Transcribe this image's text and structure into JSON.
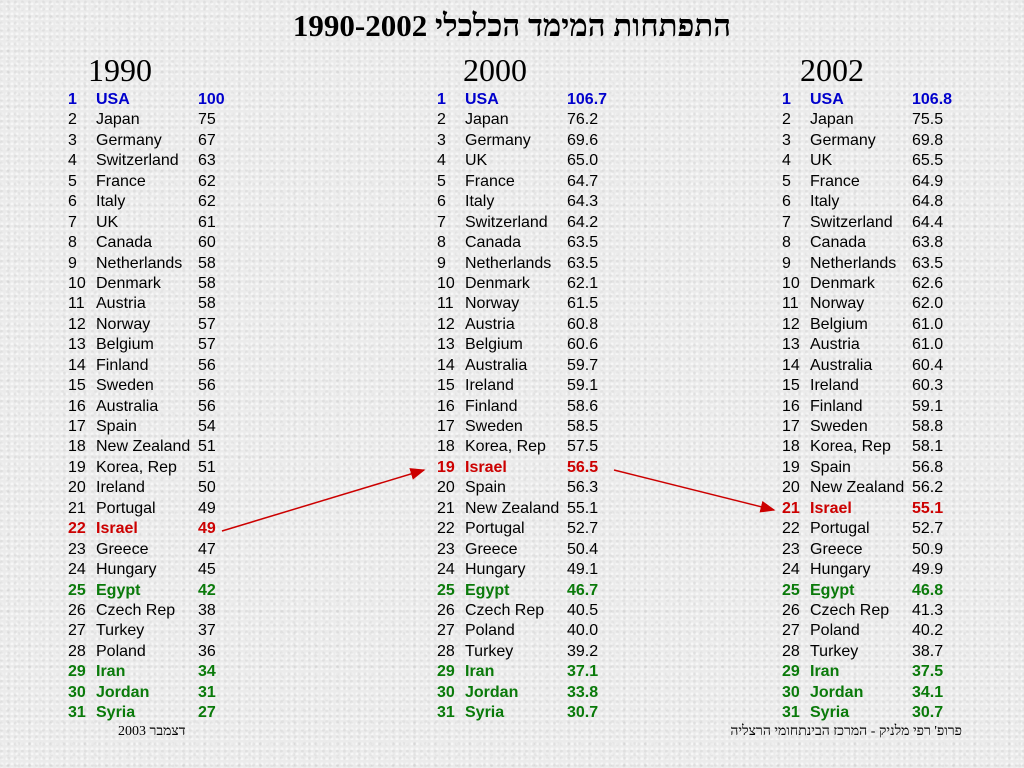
{
  "title": "התפתחות המימד הכלכלי 1990-2002",
  "footer_left": "דצמבר 2003",
  "footer_right": "פרופ' רפי מלניק - המרכז הבינתחומי הרצליה",
  "colors": {
    "blue": "#0000cc",
    "red": "#cc0000",
    "green": "#0a7a0a"
  },
  "columns": [
    {
      "year": "1990",
      "rows": [
        {
          "rank": "1",
          "country": "USA",
          "value": "100",
          "style": "blue"
        },
        {
          "rank": "2",
          "country": "Japan",
          "value": "75",
          "style": ""
        },
        {
          "rank": "3",
          "country": "Germany",
          "value": "67",
          "style": ""
        },
        {
          "rank": "4",
          "country": "Switzerland",
          "value": "63",
          "style": ""
        },
        {
          "rank": "5",
          "country": "France",
          "value": "62",
          "style": ""
        },
        {
          "rank": "6",
          "country": "Italy",
          "value": "62",
          "style": ""
        },
        {
          "rank": "7",
          "country": "UK",
          "value": "61",
          "style": ""
        },
        {
          "rank": "8",
          "country": "Canada",
          "value": "60",
          "style": ""
        },
        {
          "rank": "9",
          "country": "Netherlands",
          "value": "58",
          "style": ""
        },
        {
          "rank": "10",
          "country": "Denmark",
          "value": "58",
          "style": ""
        },
        {
          "rank": "11",
          "country": "Austria",
          "value": "58",
          "style": ""
        },
        {
          "rank": "12",
          "country": "Norway",
          "value": "57",
          "style": ""
        },
        {
          "rank": "13",
          "country": "Belgium",
          "value": "57",
          "style": ""
        },
        {
          "rank": "14",
          "country": "Finland",
          "value": "56",
          "style": ""
        },
        {
          "rank": "15",
          "country": "Sweden",
          "value": "56",
          "style": ""
        },
        {
          "rank": "16",
          "country": "Australia",
          "value": "56",
          "style": ""
        },
        {
          "rank": "17",
          "country": "Spain",
          "value": "54",
          "style": ""
        },
        {
          "rank": "18",
          "country": "New Zealand",
          "value": "51",
          "style": ""
        },
        {
          "rank": "19",
          "country": "Korea, Rep",
          "value": "51",
          "style": ""
        },
        {
          "rank": "20",
          "country": "Ireland",
          "value": "50",
          "style": ""
        },
        {
          "rank": "21",
          "country": "Portugal",
          "value": "49",
          "style": ""
        },
        {
          "rank": "22",
          "country": "Israel",
          "value": "49",
          "style": "red"
        },
        {
          "rank": "23",
          "country": "Greece",
          "value": "47",
          "style": ""
        },
        {
          "rank": "24",
          "country": "Hungary",
          "value": "45",
          "style": ""
        },
        {
          "rank": "25",
          "country": "Egypt",
          "value": "42",
          "style": "green"
        },
        {
          "rank": "26",
          "country": "Czech Rep",
          "value": "38",
          "style": ""
        },
        {
          "rank": "27",
          "country": "Turkey",
          "value": "37",
          "style": ""
        },
        {
          "rank": "28",
          "country": "Poland",
          "value": "36",
          "style": ""
        },
        {
          "rank": "29",
          "country": "Iran",
          "value": "34",
          "style": "green"
        },
        {
          "rank": "30",
          "country": "Jordan",
          "value": "31",
          "style": "green"
        },
        {
          "rank": "31",
          "country": "Syria",
          "value": "27",
          "style": "green"
        }
      ]
    },
    {
      "year": "2000",
      "rows": [
        {
          "rank": "1",
          "country": "USA",
          "value": "106.7",
          "style": "blue"
        },
        {
          "rank": "2",
          "country": "Japan",
          "value": "76.2",
          "style": ""
        },
        {
          "rank": "3",
          "country": "Germany",
          "value": "69.6",
          "style": ""
        },
        {
          "rank": "4",
          "country": "UK",
          "value": "65.0",
          "style": ""
        },
        {
          "rank": "5",
          "country": "France",
          "value": "64.7",
          "style": ""
        },
        {
          "rank": "6",
          "country": "Italy",
          "value": "64.3",
          "style": ""
        },
        {
          "rank": "7",
          "country": "Switzerland",
          "value": "64.2",
          "style": ""
        },
        {
          "rank": "8",
          "country": "Canada",
          "value": "63.5",
          "style": ""
        },
        {
          "rank": "9",
          "country": "Netherlands",
          "value": "63.5",
          "style": ""
        },
        {
          "rank": "10",
          "country": "Denmark",
          "value": "62.1",
          "style": ""
        },
        {
          "rank": "11",
          "country": "Norway",
          "value": "61.5",
          "style": ""
        },
        {
          "rank": "12",
          "country": "Austria",
          "value": "60.8",
          "style": ""
        },
        {
          "rank": "13",
          "country": "Belgium",
          "value": "60.6",
          "style": ""
        },
        {
          "rank": "14",
          "country": "Australia",
          "value": "59.7",
          "style": ""
        },
        {
          "rank": "15",
          "country": "Ireland",
          "value": "59.1",
          "style": ""
        },
        {
          "rank": "16",
          "country": "Finland",
          "value": "58.6",
          "style": ""
        },
        {
          "rank": "17",
          "country": "Sweden",
          "value": "58.5",
          "style": ""
        },
        {
          "rank": "18",
          "country": "Korea, Rep",
          "value": "57.5",
          "style": ""
        },
        {
          "rank": "19",
          "country": "Israel",
          "value": "56.5",
          "style": "red"
        },
        {
          "rank": "20",
          "country": "Spain",
          "value": "56.3",
          "style": ""
        },
        {
          "rank": "21",
          "country": "New Zealand",
          "value": "55.1",
          "style": ""
        },
        {
          "rank": "22",
          "country": "Portugal",
          "value": "52.7",
          "style": ""
        },
        {
          "rank": "23",
          "country": "Greece",
          "value": "50.4",
          "style": ""
        },
        {
          "rank": "24",
          "country": "Hungary",
          "value": "49.1",
          "style": ""
        },
        {
          "rank": "25",
          "country": "Egypt",
          "value": "46.7",
          "style": "green"
        },
        {
          "rank": "26",
          "country": "Czech Rep",
          "value": "40.5",
          "style": ""
        },
        {
          "rank": "27",
          "country": "Poland",
          "value": "40.0",
          "style": ""
        },
        {
          "rank": "28",
          "country": "Turkey",
          "value": "39.2",
          "style": ""
        },
        {
          "rank": "29",
          "country": "Iran",
          "value": "37.1",
          "style": "green"
        },
        {
          "rank": "30",
          "country": "Jordan",
          "value": "33.8",
          "style": "green"
        },
        {
          "rank": "31",
          "country": "Syria",
          "value": "30.7",
          "style": "green"
        }
      ]
    },
    {
      "year": "2002",
      "rows": [
        {
          "rank": "1",
          "country": "USA",
          "value": "106.8",
          "style": "blue"
        },
        {
          "rank": "2",
          "country": "Japan",
          "value": "75.5",
          "style": ""
        },
        {
          "rank": "3",
          "country": "Germany",
          "value": "69.8",
          "style": ""
        },
        {
          "rank": "4",
          "country": "UK",
          "value": "65.5",
          "style": ""
        },
        {
          "rank": "5",
          "country": "France",
          "value": "64.9",
          "style": ""
        },
        {
          "rank": "6",
          "country": "Italy",
          "value": "64.8",
          "style": ""
        },
        {
          "rank": "7",
          "country": "Switzerland",
          "value": "64.4",
          "style": ""
        },
        {
          "rank": "8",
          "country": "Canada",
          "value": "63.8",
          "style": ""
        },
        {
          "rank": "9",
          "country": "Netherlands",
          "value": "63.5",
          "style": ""
        },
        {
          "rank": "10",
          "country": "Denmark",
          "value": "62.6",
          "style": ""
        },
        {
          "rank": "11",
          "country": "Norway",
          "value": "62.0",
          "style": ""
        },
        {
          "rank": "12",
          "country": "Belgium",
          "value": "61.0",
          "style": ""
        },
        {
          "rank": "13",
          "country": "Austria",
          "value": "61.0",
          "style": ""
        },
        {
          "rank": "14",
          "country": "Australia",
          "value": "60.4",
          "style": ""
        },
        {
          "rank": "15",
          "country": "Ireland",
          "value": "60.3",
          "style": ""
        },
        {
          "rank": "16",
          "country": "Finland",
          "value": "59.1",
          "style": ""
        },
        {
          "rank": "17",
          "country": "Sweden",
          "value": "58.8",
          "style": ""
        },
        {
          "rank": "18",
          "country": "Korea, Rep",
          "value": "58.1",
          "style": ""
        },
        {
          "rank": "19",
          "country": "Spain",
          "value": "56.8",
          "style": ""
        },
        {
          "rank": "20",
          "country": "New Zealand",
          "value": "56.2",
          "style": ""
        },
        {
          "rank": "21",
          "country": "Israel",
          "value": "55.1",
          "style": "red"
        },
        {
          "rank": "22",
          "country": "Portugal",
          "value": "52.7",
          "style": ""
        },
        {
          "rank": "23",
          "country": "Greece",
          "value": "50.9",
          "style": ""
        },
        {
          "rank": "24",
          "country": "Hungary",
          "value": "49.9",
          "style": ""
        },
        {
          "rank": "25",
          "country": "Egypt",
          "value": "46.8",
          "style": "green"
        },
        {
          "rank": "26",
          "country": "Czech Rep",
          "value": "41.3",
          "style": ""
        },
        {
          "rank": "27",
          "country": "Poland",
          "value": "40.2",
          "style": ""
        },
        {
          "rank": "28",
          "country": "Turkey",
          "value": "38.7",
          "style": ""
        },
        {
          "rank": "29",
          "country": "Iran",
          "value": "37.5",
          "style": "green"
        },
        {
          "rank": "30",
          "country": "Jordan",
          "value": "34.1",
          "style": "green"
        },
        {
          "rank": "31",
          "country": "Syria",
          "value": "30.7",
          "style": "green"
        }
      ]
    }
  ]
}
